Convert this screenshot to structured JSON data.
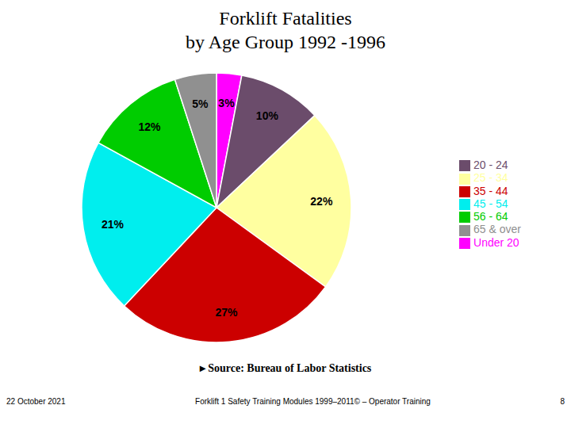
{
  "chart_data": {
    "type": "pie",
    "title": "Forklift Fatalities",
    "subtitle": "by Age Group 1992 -1996",
    "categories": [
      "Under 20",
      "20 - 24",
      "25 - 34",
      "35 - 44",
      "45 - 54",
      "56 - 64",
      "65 & over"
    ],
    "values": [
      3,
      10,
      22,
      27,
      21,
      12,
      5
    ],
    "value_labels": [
      "3%",
      "10%",
      "22%",
      "27%",
      "21%",
      "12%",
      "5%"
    ],
    "data_labels": true,
    "colors": [
      "#FF00FF",
      "#6B4C6B",
      "#FFFFA0",
      "#CC0000",
      "#00EEEE",
      "#00CC00",
      "#909090"
    ],
    "legend": "right",
    "annotations": [
      "▸  Source: Bureau of Labor Statistics",
      "22 October 2021",
      "Forklift 1  Safety Training Modules  1999–2011© – Operator Training",
      "8"
    ]
  }
}
